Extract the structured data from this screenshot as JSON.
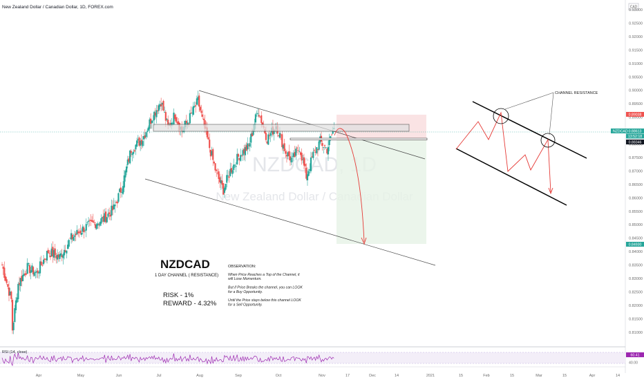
{
  "header": {
    "title": "New Zealand Dollar / Canadian Dollar, 1D, FOREX.com",
    "currency": "CAD"
  },
  "watermark": {
    "line1": "NZDCAD, 1D",
    "line2": "New Zealand Dollar / Canadian Dollar"
  },
  "annotations": {
    "symbol_title": "NZDCAD",
    "subtitle": "1 DAY CHANNEL ( RESISTANCE)",
    "risk": "RISK - 1%",
    "reward": "REWARD - 4.32%",
    "channel_resistance": "CHANNEL RESISTANCE",
    "observation_title": "OBSERVATION:",
    "observation_lines": [
      "When Price Reaches a Top of the Channel, it",
      "will Lose Momentum.",
      "",
      "But if Price Breaks the channel, you can LOOK",
      "for a Buy Opportunity.",
      "",
      "Until the Price stays below this channel LOOK",
      "for a Sell Opportunity."
    ]
  },
  "price_labels": {
    "stop": "0.89038",
    "symbol": "NZDCAD",
    "current": "0.88613",
    "countdown": "13:52:18",
    "entry": "0.88346",
    "target": "0.84930"
  },
  "rsi": {
    "label": "RSI (14, close)",
    "value": "60.41",
    "level_40": "40.00",
    "color": "#9c27b0"
  },
  "colors": {
    "up": "#26a69a",
    "down": "#ef5350",
    "sketch": "#e53935",
    "current_line": "#26a69a"
  },
  "chart_data": {
    "type": "candlestick",
    "title": "New Zealand Dollar / Canadian Dollar, 1D, FOREX.com",
    "ylim": [
      0.805,
      0.935
    ],
    "y_ticks": [
      "0.93000",
      "0.92500",
      "0.92000",
      "0.91500",
      "0.91000",
      "0.90500",
      "0.90000",
      "0.89500",
      "0.89000",
      "0.88500",
      "0.88000",
      "0.87500",
      "0.87000",
      "0.86500",
      "0.86000",
      "0.85500",
      "0.85000",
      "0.84500",
      "0.84000",
      "0.83500",
      "0.83000",
      "0.82500",
      "0.82000",
      "0.81500",
      "0.81000"
    ],
    "x_ticks": [
      "Apr",
      "May",
      "Jun",
      "Jul",
      "Aug",
      "Sep",
      "Oct",
      "Nov",
      "17",
      "Dec",
      "14",
      "2021",
      "15",
      "Feb",
      "15",
      "Mar",
      "15",
      "Apr",
      "14"
    ],
    "anchors": [
      [
        0,
        0.835
      ],
      [
        8,
        0.822
      ],
      [
        9,
        0.811
      ],
      [
        14,
        0.828
      ],
      [
        22,
        0.834
      ],
      [
        30,
        0.832
      ],
      [
        40,
        0.84
      ],
      [
        50,
        0.838
      ],
      [
        60,
        0.845
      ],
      [
        72,
        0.849
      ],
      [
        88,
        0.852
      ],
      [
        97,
        0.856
      ],
      [
        104,
        0.864
      ],
      [
        112,
        0.878
      ],
      [
        122,
        0.882
      ],
      [
        130,
        0.89
      ],
      [
        138,
        0.896
      ],
      [
        144,
        0.886
      ],
      [
        150,
        0.891
      ],
      [
        156,
        0.885
      ],
      [
        162,
        0.889
      ],
      [
        170,
        0.896
      ],
      [
        178,
        0.882
      ],
      [
        186,
        0.869
      ],
      [
        192,
        0.863
      ],
      [
        198,
        0.87
      ],
      [
        206,
        0.876
      ],
      [
        214,
        0.879
      ],
      [
        222,
        0.893
      ],
      [
        230,
        0.882
      ],
      [
        238,
        0.887
      ],
      [
        246,
        0.877
      ],
      [
        252,
        0.874
      ],
      [
        258,
        0.879
      ],
      [
        264,
        0.868
      ],
      [
        270,
        0.876
      ],
      [
        276,
        0.881
      ],
      [
        282,
        0.878
      ],
      [
        288,
        0.886
      ]
    ],
    "channel_upper": [
      [
        0.8985,
        1
      ],
      [
        0.8955,
        60
      ]
    ],
    "resistance_zone": [
      0.8895,
      0.8875
    ],
    "entry_line": 0.88346,
    "stop_loss": 0.89038,
    "target": 0.8493,
    "current_price": 0.88613,
    "rsi_range": [
      30,
      70
    ],
    "rsi_current": 60.41
  }
}
